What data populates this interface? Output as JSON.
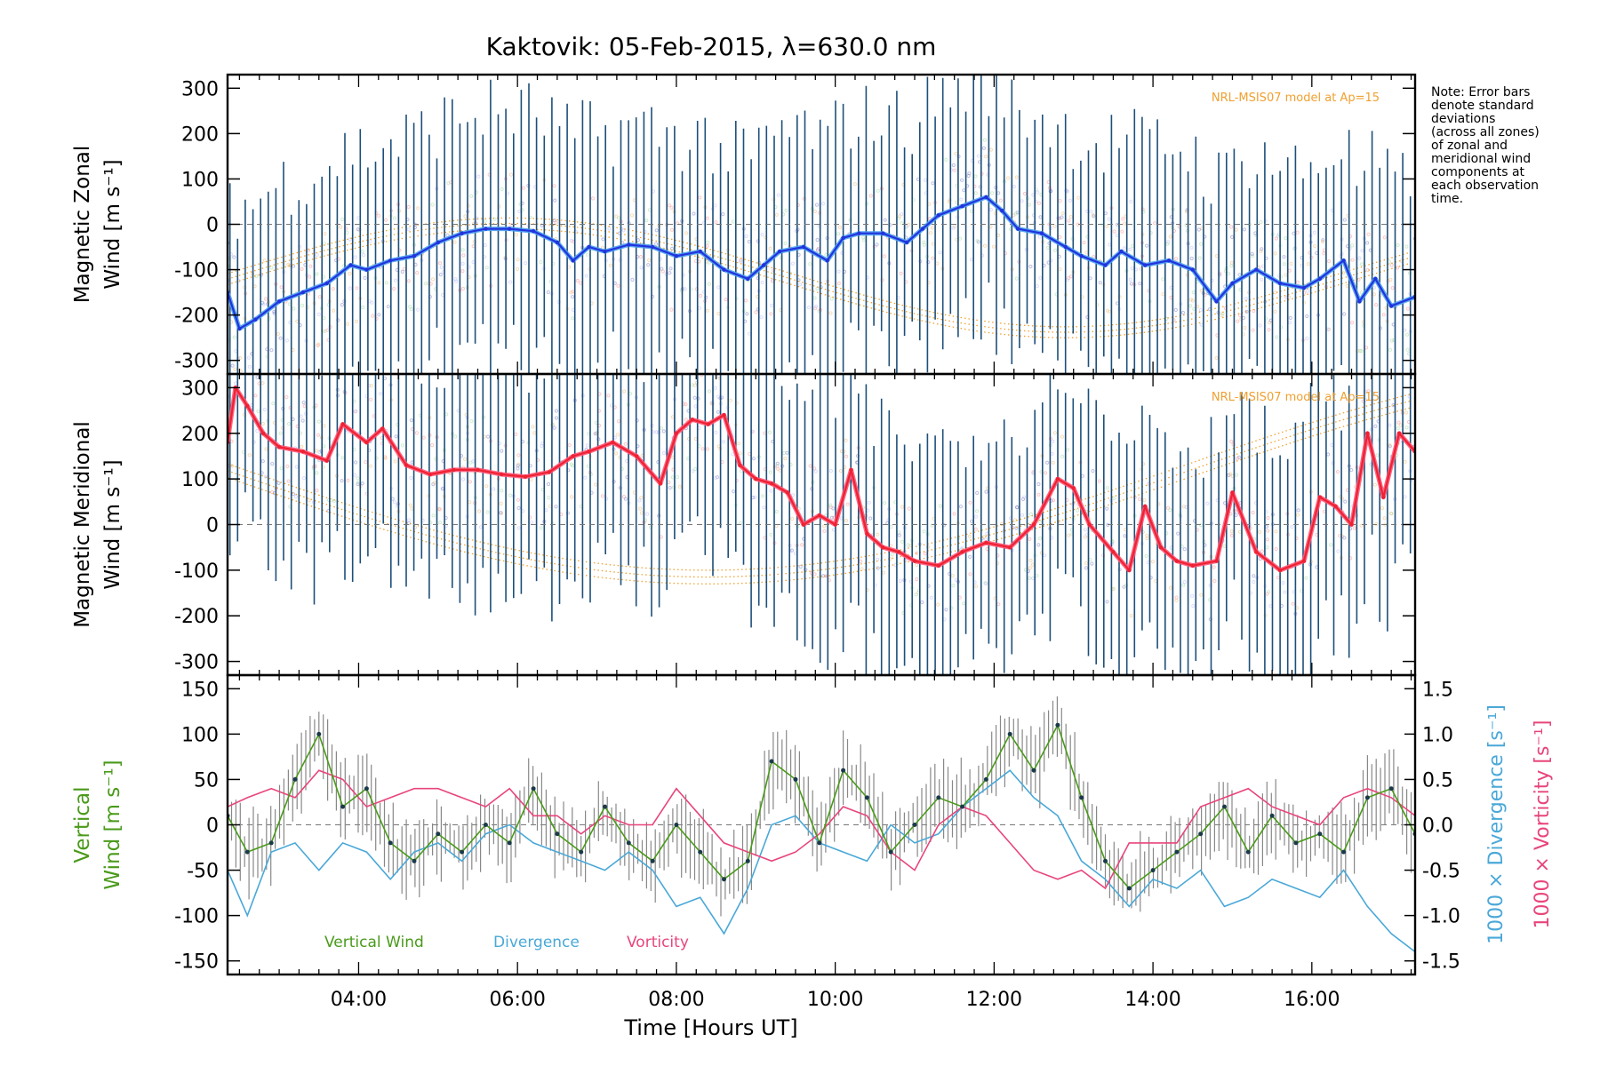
{
  "title": "Kaktovik: 05-Feb-2015, λ=630.0 nm",
  "note": [
    "Note: Error bars",
    "denote standard",
    "deviations",
    "(across all zones)",
    "of zonal and",
    "meridional wind",
    "components at",
    "each observation",
    "time."
  ],
  "model_label": "NRL-MSIS07 model at Ap=15",
  "xlabel": "Time [Hours UT]",
  "colors": {
    "zonal": "#2233dd",
    "zonal_light": "#4aa0f0",
    "meridional": "#ee2233",
    "meridional_light": "#ff5577",
    "errorbar": "#1c4f7a",
    "vertical": "#4a9a1a",
    "divergence": "#4aa8d8",
    "vorticity": "#e8457a",
    "model": "#f0a030"
  },
  "chart_data": [
    {
      "type": "line",
      "panel": "zonal",
      "ylabel": [
        "Magnetic Zonal",
        "Wind [m s⁻¹]"
      ],
      "xlim": [
        2.35,
        17.3
      ],
      "ylim": [
        -330,
        330
      ],
      "yticks": [
        -300,
        -200,
        -100,
        0,
        100,
        200,
        300
      ],
      "xticks": [
        "04:00",
        "06:00",
        "08:00",
        "10:00",
        "12:00",
        "14:00",
        "16:00"
      ],
      "xtick_values": [
        4,
        6,
        8,
        10,
        12,
        14,
        16
      ],
      "series": [
        {
          "x": [
            2.35,
            2.5,
            2.7,
            3.0,
            3.3,
            3.6,
            3.9,
            4.1,
            4.4,
            4.7,
            5.0,
            5.3,
            5.6,
            5.9,
            6.2,
            6.5,
            6.7,
            6.9,
            7.1,
            7.4,
            7.7,
            8.0,
            8.3,
            8.6,
            8.9,
            9.1,
            9.3,
            9.6,
            9.9,
            10.1,
            10.3,
            10.6,
            10.9,
            11.1,
            11.3,
            11.6,
            11.9,
            12.1,
            12.3,
            12.6,
            12.9,
            13.1,
            13.4,
            13.6,
            13.9,
            14.2,
            14.5,
            14.8,
            15.0,
            15.3,
            15.6,
            15.9,
            16.1,
            16.4,
            16.6,
            16.8,
            17.0,
            17.3
          ],
          "y": [
            -150,
            -230,
            -210,
            -170,
            -150,
            -130,
            -90,
            -100,
            -80,
            -70,
            -40,
            -20,
            -10,
            -10,
            -15,
            -40,
            -80,
            -50,
            -60,
            -45,
            -50,
            -70,
            -60,
            -100,
            -120,
            -90,
            -60,
            -50,
            -80,
            -30,
            -20,
            -20,
            -40,
            -10,
            20,
            40,
            60,
            30,
            -10,
            -20,
            -50,
            -70,
            -90,
            -60,
            -90,
            -80,
            -100,
            -170,
            -130,
            -100,
            -130,
            -140,
            -120,
            -80,
            -170,
            -120,
            -180,
            -160
          ]
        }
      ]
    },
    {
      "type": "line",
      "panel": "meridional",
      "ylabel": [
        "Magnetic Meridional",
        "Wind [m s⁻¹]"
      ],
      "xlim": [
        2.35,
        17.3
      ],
      "ylim": [
        -330,
        330
      ],
      "yticks": [
        -300,
        -200,
        -100,
        0,
        100,
        200,
        300
      ],
      "series": [
        {
          "x": [
            2.35,
            2.45,
            2.6,
            2.8,
            3.0,
            3.3,
            3.6,
            3.8,
            4.1,
            4.3,
            4.6,
            4.9,
            5.2,
            5.5,
            5.8,
            6.1,
            6.4,
            6.7,
            6.9,
            7.2,
            7.5,
            7.8,
            8.0,
            8.2,
            8.4,
            8.6,
            8.8,
            9.0,
            9.2,
            9.4,
            9.6,
            9.8,
            10.0,
            10.2,
            10.4,
            10.6,
            10.8,
            11.0,
            11.3,
            11.6,
            11.9,
            12.2,
            12.5,
            12.8,
            13.0,
            13.2,
            13.5,
            13.7,
            13.9,
            14.1,
            14.3,
            14.5,
            14.8,
            15.0,
            15.3,
            15.6,
            15.9,
            16.1,
            16.3,
            16.5,
            16.7,
            16.9,
            17.1,
            17.3
          ],
          "y": [
            180,
            300,
            260,
            200,
            170,
            160,
            140,
            220,
            180,
            210,
            130,
            110,
            120,
            120,
            110,
            105,
            115,
            150,
            160,
            180,
            150,
            90,
            200,
            230,
            220,
            240,
            130,
            100,
            90,
            70,
            0,
            20,
            0,
            120,
            -20,
            -50,
            -60,
            -80,
            -90,
            -60,
            -40,
            -50,
            0,
            100,
            80,
            0,
            -60,
            -100,
            40,
            -50,
            -80,
            -90,
            -80,
            70,
            -60,
            -100,
            -80,
            60,
            40,
            0,
            200,
            60,
            200,
            160
          ]
        }
      ]
    },
    {
      "type": "line",
      "panel": "vertical",
      "ylabel": [
        "Vertical",
        "Wind [m s⁻¹]"
      ],
      "y2label": "1000 × Divergence [s⁻¹]",
      "y3label": "1000 × Vorticity [s⁻¹]",
      "xlim": [
        2.35,
        17.3
      ],
      "ylim": [
        -165,
        165
      ],
      "yticks": [
        -150,
        -100,
        -50,
        0,
        50,
        100,
        150
      ],
      "y2lim": [
        -1.65,
        1.65
      ],
      "y2ticks": [
        -1.5,
        -1.0,
        -0.5,
        0.0,
        0.5,
        1.0,
        1.5
      ],
      "legend": [
        "Vertical Wind",
        "Divergence",
        "Vorticity"
      ],
      "series": [
        {
          "name": "Vertical Wind",
          "x": [
            2.35,
            2.6,
            2.9,
            3.2,
            3.5,
            3.8,
            4.1,
            4.4,
            4.7,
            5.0,
            5.3,
            5.6,
            5.9,
            6.2,
            6.5,
            6.8,
            7.1,
            7.4,
            7.7,
            8.0,
            8.3,
            8.6,
            8.9,
            9.2,
            9.5,
            9.8,
            10.1,
            10.4,
            10.7,
            11.0,
            11.3,
            11.6,
            11.9,
            12.2,
            12.5,
            12.8,
            13.1,
            13.4,
            13.7,
            14.0,
            14.3,
            14.6,
            14.9,
            15.2,
            15.5,
            15.8,
            16.1,
            16.4,
            16.7,
            17.0,
            17.3
          ],
          "y": [
            10,
            -30,
            -20,
            50,
            100,
            20,
            40,
            -20,
            -40,
            -10,
            -30,
            0,
            -20,
            40,
            -10,
            -30,
            20,
            -20,
            -40,
            0,
            -30,
            -60,
            -40,
            70,
            50,
            -20,
            60,
            30,
            -30,
            0,
            30,
            20,
            50,
            100,
            60,
            110,
            30,
            -40,
            -70,
            -50,
            -30,
            -10,
            20,
            -30,
            10,
            -20,
            -10,
            -30,
            30,
            40,
            -10
          ]
        },
        {
          "name": "Divergence",
          "x": [
            2.35,
            2.6,
            2.9,
            3.2,
            3.5,
            3.8,
            4.1,
            4.4,
            4.7,
            5.0,
            5.3,
            5.6,
            5.9,
            6.2,
            6.5,
            6.8,
            7.1,
            7.4,
            7.7,
            8.0,
            8.3,
            8.6,
            8.9,
            9.2,
            9.5,
            9.8,
            10.1,
            10.4,
            10.7,
            11.0,
            11.3,
            11.6,
            11.9,
            12.2,
            12.5,
            12.8,
            13.1,
            13.4,
            13.7,
            14.0,
            14.3,
            14.6,
            14.9,
            15.2,
            15.5,
            15.8,
            16.1,
            16.4,
            16.7,
            17.0,
            17.3
          ],
          "y": [
            -0.5,
            -1.0,
            -0.3,
            -0.2,
            -0.5,
            -0.2,
            -0.3,
            -0.6,
            -0.3,
            -0.2,
            -0.4,
            -0.1,
            0.0,
            -0.2,
            -0.3,
            -0.4,
            -0.5,
            -0.3,
            -0.5,
            -0.9,
            -0.8,
            -1.2,
            -0.7,
            0.0,
            0.1,
            -0.2,
            -0.3,
            -0.4,
            0.0,
            -0.2,
            -0.1,
            0.2,
            0.4,
            0.6,
            0.3,
            0.1,
            -0.4,
            -0.6,
            -0.9,
            -0.6,
            -0.7,
            -0.5,
            -0.9,
            -0.8,
            -0.6,
            -0.7,
            -0.8,
            -0.5,
            -0.9,
            -1.2,
            -1.4
          ]
        },
        {
          "name": "Vorticity",
          "x": [
            2.35,
            2.6,
            2.9,
            3.2,
            3.5,
            3.8,
            4.1,
            4.4,
            4.7,
            5.0,
            5.3,
            5.6,
            5.9,
            6.2,
            6.5,
            6.8,
            7.1,
            7.4,
            7.7,
            8.0,
            8.3,
            8.6,
            8.9,
            9.2,
            9.5,
            9.8,
            10.1,
            10.4,
            10.7,
            11.0,
            11.3,
            11.6,
            11.9,
            12.2,
            12.5,
            12.8,
            13.1,
            13.4,
            13.7,
            14.0,
            14.3,
            14.6,
            14.9,
            15.2,
            15.5,
            15.8,
            16.1,
            16.4,
            16.7,
            17.0,
            17.3
          ],
          "y": [
            0.2,
            0.3,
            0.4,
            0.3,
            0.6,
            0.5,
            0.2,
            0.3,
            0.4,
            0.4,
            0.3,
            0.2,
            0.4,
            0.1,
            0.1,
            -0.1,
            0.1,
            0.0,
            0.0,
            0.4,
            0.1,
            -0.2,
            -0.3,
            -0.4,
            -0.3,
            -0.1,
            0.2,
            0.1,
            -0.3,
            -0.5,
            0.0,
            0.2,
            0.1,
            -0.2,
            -0.5,
            -0.6,
            -0.5,
            -0.7,
            -0.2,
            -0.2,
            -0.2,
            0.2,
            0.3,
            0.4,
            0.2,
            0.1,
            0.0,
            0.3,
            0.4,
            0.3,
            0.1
          ]
        }
      ]
    }
  ]
}
